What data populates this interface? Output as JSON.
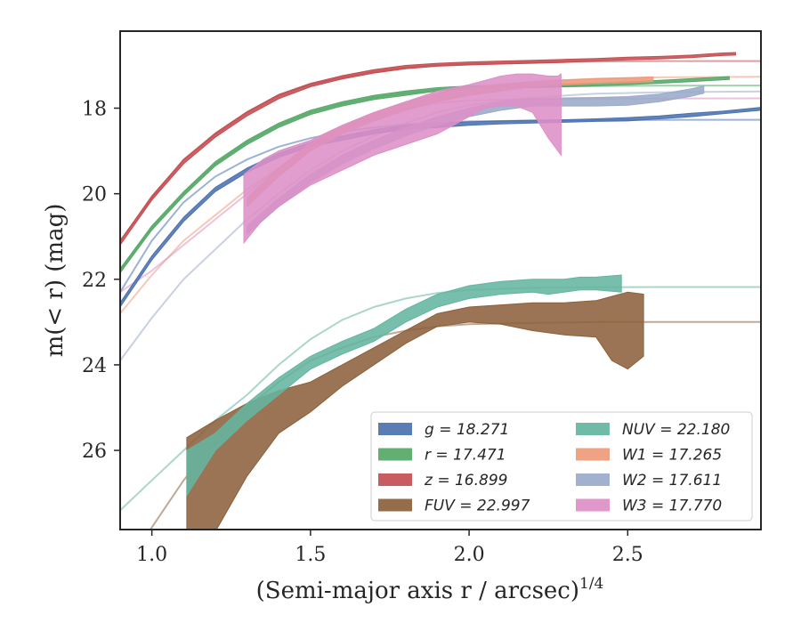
{
  "chart_data": {
    "type": "area",
    "xlabel": "(Semi-major axis r / arcsec)",
    "xlabel_power": "1/4",
    "ylabel": "m(< r) (mag)",
    "xlim": [
      0.9,
      2.92
    ],
    "ylim": [
      27.85,
      16.2
    ],
    "y_inverted": true,
    "xticks": [
      1.0,
      1.5,
      2.0,
      2.5
    ],
    "xtick_labels": [
      "1.0",
      "1.5",
      "2.0",
      "2.5"
    ],
    "yticks": [
      18,
      20,
      22,
      24,
      26
    ],
    "ytick_labels": [
      "18",
      "20",
      "22",
      "24",
      "26"
    ],
    "grid": false,
    "legend_placement": "lower-right",
    "series": [
      {
        "name": "g",
        "label": "g = 18.271",
        "color": "#4c72b0",
        "model": "#4c72b0",
        "model_x": [
          0.9,
          1.0,
          1.1,
          1.2,
          1.3,
          1.4,
          1.5,
          1.6,
          1.7,
          1.8,
          1.9,
          2.0,
          2.2,
          2.4,
          2.6,
          2.92
        ],
        "model_y": [
          22.3,
          21.1,
          20.2,
          19.6,
          19.2,
          18.9,
          18.7,
          18.55,
          18.45,
          18.38,
          18.34,
          18.31,
          18.29,
          18.28,
          18.275,
          18.271
        ],
        "band_x": [
          0.9,
          1.0,
          1.1,
          1.2,
          1.3,
          1.4,
          1.5,
          1.6,
          1.7,
          1.8,
          1.9,
          2.0,
          2.1,
          2.2,
          2.3,
          2.4,
          2.5,
          2.6,
          2.7,
          2.8,
          2.92
        ],
        "band_low": [
          22.65,
          21.55,
          20.65,
          19.95,
          19.5,
          19.15,
          18.9,
          18.75,
          18.6,
          18.5,
          18.45,
          18.4,
          18.37,
          18.35,
          18.33,
          18.31,
          18.3,
          18.25,
          18.2,
          18.13,
          18.05
        ],
        "band_high": [
          22.55,
          21.45,
          20.55,
          19.85,
          19.4,
          19.05,
          18.8,
          18.65,
          18.5,
          18.4,
          18.35,
          18.32,
          18.3,
          18.28,
          18.27,
          18.25,
          18.22,
          18.18,
          18.12,
          18.07,
          17.98
        ]
      },
      {
        "name": "r",
        "label": "r = 17.471",
        "color": "#55a868",
        "model": "#55a868",
        "model_x": [
          0.9,
          1.0,
          1.1,
          1.2,
          1.3,
          1.4,
          1.5,
          1.6,
          1.7,
          1.8,
          1.9,
          2.0,
          2.2,
          2.4,
          2.6,
          2.92
        ],
        "model_y": [
          21.8,
          20.8,
          20.0,
          19.3,
          18.8,
          18.4,
          18.1,
          17.9,
          17.75,
          17.65,
          17.57,
          17.53,
          17.5,
          17.485,
          17.475,
          17.471
        ],
        "band_x": [
          0.9,
          1.0,
          1.1,
          1.2,
          1.3,
          1.4,
          1.5,
          1.6,
          1.7,
          1.8,
          1.9,
          2.0,
          2.1,
          2.2,
          2.3,
          2.4,
          2.5,
          2.6,
          2.7,
          2.82
        ],
        "band_low": [
          21.85,
          20.85,
          20.05,
          19.35,
          18.85,
          18.45,
          18.15,
          17.95,
          17.8,
          17.7,
          17.6,
          17.56,
          17.53,
          17.52,
          17.5,
          17.48,
          17.45,
          17.42,
          17.38,
          17.33
        ],
        "band_high": [
          21.75,
          20.75,
          19.95,
          19.25,
          18.75,
          18.35,
          18.05,
          17.85,
          17.7,
          17.6,
          17.52,
          17.48,
          17.46,
          17.45,
          17.43,
          17.41,
          17.38,
          17.35,
          17.31,
          17.26
        ]
      },
      {
        "name": "z",
        "label": "z = 16.899",
        "color": "#c44e52",
        "model": "#c44e52",
        "model_x": [
          0.9,
          1.0,
          1.1,
          1.2,
          1.3,
          1.4,
          1.5,
          1.6,
          1.7,
          1.8,
          1.9,
          2.0,
          2.2,
          2.4,
          2.6,
          2.92
        ],
        "model_y": [
          21.1,
          20.1,
          19.2,
          18.6,
          18.1,
          17.7,
          17.45,
          17.28,
          17.15,
          17.05,
          17.0,
          16.97,
          16.93,
          16.91,
          16.9,
          16.899
        ],
        "band_x": [
          0.9,
          1.0,
          1.1,
          1.2,
          1.3,
          1.4,
          1.5,
          1.6,
          1.7,
          1.8,
          1.9,
          2.0,
          2.1,
          2.2,
          2.3,
          2.4,
          2.5,
          2.6,
          2.7,
          2.8,
          2.84
        ],
        "band_low": [
          21.2,
          20.15,
          19.3,
          18.68,
          18.18,
          17.78,
          17.5,
          17.32,
          17.18,
          17.08,
          17.02,
          16.99,
          16.97,
          16.95,
          16.93,
          16.9,
          16.87,
          16.85,
          16.82,
          16.77,
          16.76
        ],
        "band_high": [
          21.1,
          20.05,
          19.2,
          18.58,
          18.08,
          17.68,
          17.42,
          17.24,
          17.1,
          17.0,
          16.95,
          16.92,
          16.9,
          16.88,
          16.86,
          16.84,
          16.81,
          16.79,
          16.76,
          16.71,
          16.7
        ]
      },
      {
        "name": "FUV",
        "label": "FUV = 22.997",
        "color": "#8c613c",
        "model": "#8c613c",
        "model_x": [
          0.9,
          1.0,
          1.1,
          1.2,
          1.3,
          1.4,
          1.5,
          1.6,
          1.7,
          1.8,
          1.9,
          2.0,
          2.2,
          2.4,
          2.6,
          2.92
        ],
        "model_y": [
          29.0,
          27.8,
          26.7,
          25.8,
          25.0,
          24.4,
          23.9,
          23.6,
          23.35,
          23.2,
          23.1,
          23.05,
          23.02,
          23.0,
          22.998,
          22.997
        ],
        "band_x": [
          1.11,
          1.2,
          1.3,
          1.4,
          1.5,
          1.6,
          1.7,
          1.8,
          1.9,
          2.0,
          2.1,
          2.2,
          2.3,
          2.4,
          2.45,
          2.5,
          2.55
        ],
        "band_low": [
          28.4,
          27.9,
          26.6,
          25.6,
          25.1,
          24.5,
          24.0,
          23.5,
          23.1,
          23.0,
          23.05,
          23.2,
          23.3,
          23.35,
          23.9,
          24.1,
          23.8
        ],
        "band_high": [
          25.7,
          25.3,
          24.9,
          24.6,
          24.4,
          24.0,
          23.6,
          23.2,
          22.8,
          22.65,
          22.6,
          22.55,
          22.55,
          22.5,
          22.4,
          22.3,
          22.35
        ]
      },
      {
        "name": "NUV",
        "label": "NUV = 22.180",
        "color": "#64b5a0",
        "model": "#64b5a0",
        "model_x": [
          0.9,
          1.0,
          1.1,
          1.2,
          1.3,
          1.4,
          1.5,
          1.6,
          1.7,
          1.8,
          1.9,
          2.0,
          2.2,
          2.4,
          2.6,
          2.92
        ],
        "model_y": [
          27.4,
          26.7,
          26.0,
          25.3,
          24.7,
          24.0,
          23.4,
          22.95,
          22.65,
          22.45,
          22.32,
          22.25,
          22.2,
          22.185,
          22.182,
          22.18
        ],
        "band_x": [
          1.11,
          1.2,
          1.3,
          1.4,
          1.5,
          1.6,
          1.7,
          1.8,
          1.9,
          2.0,
          2.1,
          2.2,
          2.25,
          2.3,
          2.35,
          2.4,
          2.48
        ],
        "band_low": [
          27.05,
          26.0,
          25.3,
          24.7,
          24.1,
          23.75,
          23.45,
          23.0,
          22.65,
          22.45,
          22.35,
          22.3,
          22.35,
          22.3,
          22.25,
          22.25,
          22.3
        ],
        "band_high": [
          26.0,
          25.6,
          24.9,
          24.3,
          23.8,
          23.45,
          23.15,
          22.7,
          22.35,
          22.15,
          22.05,
          22.0,
          22.0,
          22.0,
          21.95,
          21.95,
          21.9
        ]
      },
      {
        "name": "W1",
        "label": "W1 = 17.265",
        "color": "#ee9a7a",
        "model": "#ee9a7a",
        "model_x": [
          0.9,
          1.0,
          1.1,
          1.2,
          1.3,
          1.4,
          1.5,
          1.6,
          1.7,
          1.8,
          1.9,
          2.0,
          2.2,
          2.4,
          2.6,
          2.92
        ],
        "model_y": [
          22.8,
          21.9,
          21.1,
          20.5,
          19.9,
          19.4,
          18.9,
          18.5,
          18.15,
          17.88,
          17.68,
          17.53,
          17.38,
          17.31,
          17.28,
          17.265
        ],
        "band_x": [
          1.3,
          1.4,
          1.5,
          1.6,
          1.7,
          1.8,
          1.9,
          2.0,
          2.1,
          2.2,
          2.3,
          2.4,
          2.5,
          2.58
        ],
        "band_low": [
          20.3,
          19.6,
          19.0,
          18.6,
          18.3,
          18.05,
          17.85,
          17.7,
          17.6,
          17.5,
          17.45,
          17.42,
          17.4,
          17.38
        ],
        "band_high": [
          20.1,
          19.4,
          18.8,
          18.4,
          18.1,
          17.85,
          17.65,
          17.52,
          17.44,
          17.38,
          17.34,
          17.31,
          17.29,
          17.27
        ]
      },
      {
        "name": "W2",
        "label": "W2 = 17.611",
        "color": "#9aaac9",
        "model": "#9aaac9",
        "model_x": [
          0.9,
          1.0,
          1.1,
          1.2,
          1.3,
          1.4,
          1.5,
          1.6,
          1.7,
          1.8,
          1.9,
          2.0,
          2.2,
          2.4,
          2.6,
          2.92
        ],
        "model_y": [
          23.9,
          22.9,
          22.0,
          21.3,
          20.6,
          20.0,
          19.45,
          19.0,
          18.65,
          18.35,
          18.1,
          17.93,
          17.75,
          17.66,
          17.63,
          17.611
        ],
        "band_x": [
          1.3,
          1.4,
          1.5,
          1.6,
          1.7,
          1.8,
          1.9,
          2.0,
          2.1,
          2.2,
          2.3,
          2.4,
          2.5,
          2.6,
          2.7,
          2.74
        ],
        "band_low": [
          20.95,
          20.3,
          19.75,
          19.3,
          18.95,
          18.65,
          18.4,
          18.2,
          18.05,
          17.95,
          17.95,
          17.95,
          17.93,
          17.85,
          17.72,
          17.65
        ],
        "band_high": [
          20.75,
          20.1,
          19.55,
          19.1,
          18.75,
          18.45,
          18.2,
          18.0,
          17.85,
          17.78,
          17.76,
          17.75,
          17.73,
          17.67,
          17.55,
          17.48
        ]
      },
      {
        "name": "W3",
        "label": "W3 = 17.770",
        "color": "#dd8fc6",
        "model": "#dd8fc6",
        "model_x": [
          0.9,
          1.0,
          1.1,
          1.2,
          1.3,
          1.4,
          1.5,
          1.6,
          1.7,
          1.8,
          1.9,
          2.0,
          2.2,
          2.4,
          2.6,
          2.92
        ],
        "model_y": [
          22.3,
          21.8,
          21.2,
          20.6,
          20.0,
          19.4,
          18.9,
          18.5,
          18.2,
          18.0,
          17.88,
          17.82,
          17.79,
          17.78,
          17.775,
          17.77
        ],
        "band_x": [
          1.29,
          1.35,
          1.4,
          1.5,
          1.6,
          1.7,
          1.8,
          1.9,
          2.0,
          2.05,
          2.1,
          2.15,
          2.2,
          2.25,
          2.28,
          2.29
        ],
        "band_low": [
          21.15,
          20.6,
          20.3,
          19.8,
          19.45,
          19.1,
          18.85,
          18.6,
          18.2,
          18.0,
          17.95,
          17.95,
          18.1,
          18.7,
          19.0,
          19.1
        ],
        "band_high": [
          19.55,
          19.2,
          19.0,
          18.75,
          18.4,
          18.1,
          17.85,
          17.6,
          17.45,
          17.35,
          17.25,
          17.2,
          17.2,
          17.25,
          17.25,
          17.2
        ]
      }
    ]
  }
}
